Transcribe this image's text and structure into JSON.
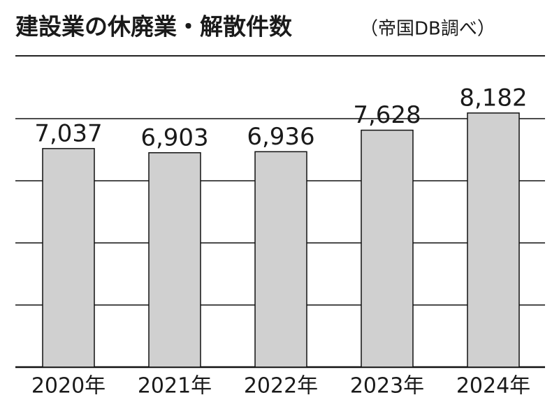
{
  "chart_data": {
    "type": "bar",
    "title": "建設業の休廃業・解散件数",
    "subtitle": "（帝国DB調べ）",
    "categories": [
      "2020年",
      "2021年",
      "2022年",
      "2023年",
      "2024年"
    ],
    "values": [
      7037,
      6903,
      6936,
      7628,
      8182
    ],
    "value_labels": [
      "7,037",
      "6,903",
      "6,936",
      "7,628",
      "8,182"
    ],
    "color": "#d0d0d0",
    "ylim": [
      0,
      9000
    ],
    "yticks": [
      0,
      2000,
      4000,
      6000,
      8000
    ],
    "grid": true
  }
}
